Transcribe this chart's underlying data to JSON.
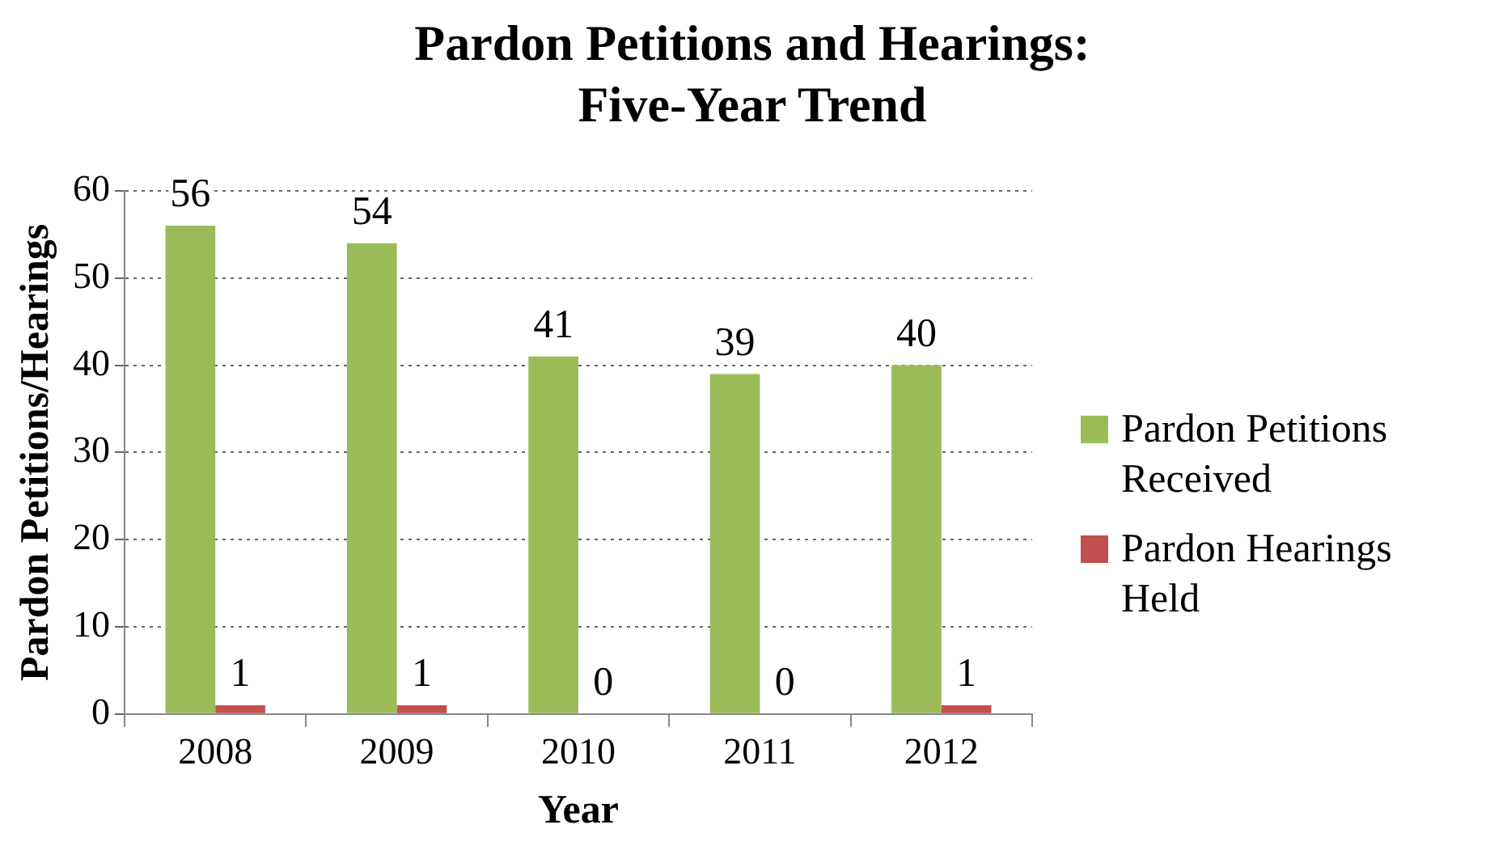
{
  "chart_data": {
    "type": "bar",
    "title": "Pardon Petitions and Hearings: Five-Year Trend",
    "xlabel": "Year",
    "ylabel": "Pardon Petitions/Hearings",
    "categories": [
      "2008",
      "2009",
      "2010",
      "2011",
      "2012"
    ],
    "series": [
      {
        "name": "Pardon Petitions Received",
        "color": "#9bbb59",
        "values": [
          56,
          54,
          41,
          39,
          40
        ]
      },
      {
        "name": "Pardon Hearings Held",
        "color": "#c0504d",
        "values": [
          1,
          1,
          0,
          0,
          1
        ]
      }
    ],
    "ylim": [
      0,
      60
    ],
    "yticks": [
      0,
      10,
      20,
      30,
      40,
      50,
      60
    ],
    "grid": "y",
    "legend": "right",
    "data_labels": true
  }
}
